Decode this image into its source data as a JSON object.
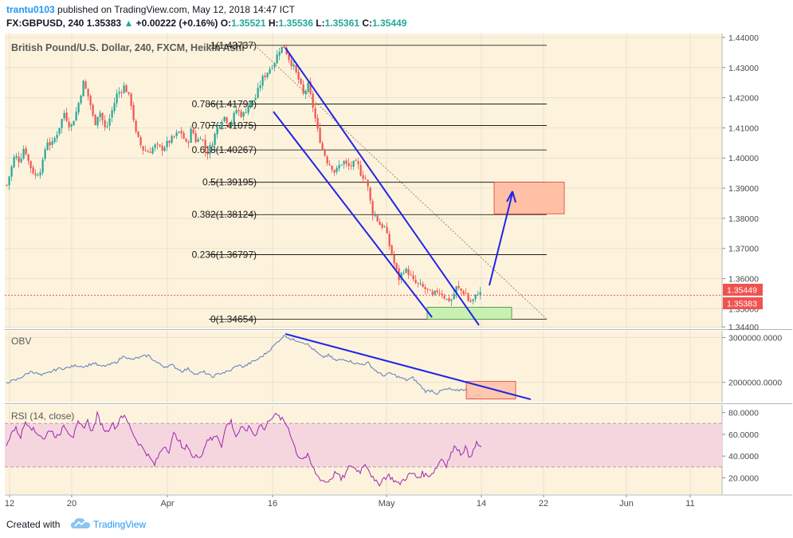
{
  "header": {
    "author": "trantu0103",
    "published_on": "published on TradingView.com, May 12, 2018 14:47 ICT",
    "symbol": "FX:GBPUSD, 240",
    "last": "1.35383",
    "change_arrow": "▲",
    "change": "+0.00222 (+0.16%)",
    "o_label": "O:",
    "o_val": "1.35521",
    "h_label": "H:",
    "h_val": "1.35536",
    "l_label": "L:",
    "l_val": "1.35361",
    "c_label": "C:",
    "c_val": "1.35449"
  },
  "footer": {
    "created_with": "Created with",
    "brand": "TradingView"
  },
  "chart_data": [
    {
      "type": "candlestick",
      "title": "British Pound/U.S. Dollar, 240, FXCM, Heikin Ashi",
      "price_range": [
        1.3435,
        1.4413
      ],
      "y_ticks": [
        "1.44000",
        "1.43000",
        "1.42000",
        "1.41000",
        "1.40000",
        "1.39000",
        "1.38000",
        "1.37000",
        "1.36000",
        "1.35000",
        "1.34400"
      ],
      "y_tick_values": [
        1.44,
        1.43,
        1.42,
        1.41,
        1.4,
        1.39,
        1.38,
        1.37,
        1.36,
        1.35,
        1.344
      ],
      "x_ticks": [
        "12",
        "20",
        "Apr",
        "16",
        "May",
        "14",
        "22",
        "Jun",
        "11"
      ],
      "price_labels": [
        {
          "text": "1.35449",
          "value": 1.35449,
          "color": "#ef5350"
        },
        {
          "text": "1.35383",
          "value": 1.35383,
          "color": "#ef5350"
        }
      ],
      "fibonacci": [
        {
          "label": "1(1.43737)",
          "value": 1.43737
        },
        {
          "label": "0.786(1.41793)",
          "value": 1.41793
        },
        {
          "label": "0.707(1.41075)",
          "value": 1.41075
        },
        {
          "label": "0.618(1.40267)",
          "value": 1.40267
        },
        {
          "label": "0.5(1.39195)",
          "value": 1.39195
        },
        {
          "label": "0.382(1.38124)",
          "value": 1.38124
        },
        {
          "label": "0.236(1.36797)",
          "value": 1.36797
        },
        {
          "label": "0(1.34654)",
          "value": 1.34654
        }
      ],
      "series_anchors": [
        [
          0,
          1.381
        ],
        [
          6,
          1.389
        ],
        [
          12,
          1.395
        ],
        [
          18,
          1.401
        ],
        [
          24,
          1.399
        ],
        [
          30,
          1.404
        ],
        [
          36,
          1.398
        ],
        [
          44,
          1.394
        ],
        [
          52,
          1.397
        ],
        [
          58,
          1.406
        ],
        [
          64,
          1.404
        ],
        [
          72,
          1.409
        ],
        [
          80,
          1.415
        ],
        [
          88,
          1.41
        ],
        [
          96,
          1.416
        ],
        [
          104,
          1.425
        ],
        [
          112,
          1.419
        ],
        [
          118,
          1.411
        ],
        [
          124,
          1.416
        ],
        [
          132,
          1.409
        ],
        [
          138,
          1.414
        ],
        [
          146,
          1.421
        ],
        [
          156,
          1.424
        ],
        [
          164,
          1.418
        ],
        [
          170,
          1.408
        ],
        [
          178,
          1.403
        ],
        [
          186,
          1.402
        ],
        [
          194,
          1.404
        ],
        [
          202,
          1.403
        ],
        [
          210,
          1.405
        ],
        [
          218,
          1.407
        ],
        [
          226,
          1.409
        ],
        [
          234,
          1.404
        ],
        [
          240,
          1.41
        ],
        [
          246,
          1.405
        ],
        [
          252,
          1.408
        ],
        [
          258,
          1.401
        ],
        [
          264,
          1.404
        ],
        [
          272,
          1.41
        ],
        [
          280,
          1.414
        ],
        [
          288,
          1.411
        ],
        [
          296,
          1.416
        ],
        [
          304,
          1.414
        ],
        [
          312,
          1.418
        ],
        [
          320,
          1.42
        ],
        [
          328,
          1.426
        ],
        [
          336,
          1.429
        ],
        [
          344,
          1.432
        ],
        [
          350,
          1.436
        ],
        [
          356,
          1.437
        ],
        [
          362,
          1.433
        ],
        [
          368,
          1.43
        ],
        [
          374,
          1.426
        ],
        [
          380,
          1.421
        ],
        [
          386,
          1.424
        ],
        [
          392,
          1.417
        ],
        [
          398,
          1.409
        ],
        [
          404,
          1.403
        ],
        [
          410,
          1.399
        ],
        [
          416,
          1.397
        ],
        [
          420,
          1.395
        ],
        [
          424,
          1.397
        ],
        [
          430,
          1.399
        ],
        [
          436,
          1.397
        ],
        [
          442,
          1.398
        ],
        [
          448,
          1.398
        ],
        [
          452,
          1.395
        ],
        [
          458,
          1.393
        ],
        [
          462,
          1.389
        ],
        [
          466,
          1.382
        ],
        [
          470,
          1.381
        ],
        [
          476,
          1.378
        ],
        [
          482,
          1.377
        ],
        [
          488,
          1.371
        ],
        [
          494,
          1.365
        ],
        [
          500,
          1.36
        ],
        [
          506,
          1.363
        ],
        [
          512,
          1.362
        ],
        [
          518,
          1.359
        ],
        [
          524,
          1.358
        ],
        [
          530,
          1.357
        ],
        [
          536,
          1.356
        ],
        [
          542,
          1.354
        ],
        [
          548,
          1.356
        ],
        [
          554,
          1.355
        ],
        [
          560,
          1.353
        ],
        [
          566,
          1.353
        ],
        [
          572,
          1.357
        ],
        [
          578,
          1.356
        ],
        [
          584,
          1.355
        ],
        [
          588,
          1.352
        ],
        [
          594,
          1.353
        ],
        [
          600,
          1.356
        ],
        [
          604,
          1.354
        ]
      ],
      "indicator": "OBV",
      "obv_range": [
        1550000,
        3150000
      ],
      "obv_ticks": [
        "3000000.0000",
        "2000000.0000"
      ],
      "obv_tick_values": [
        3000000,
        2000000
      ],
      "obv_anchors": [
        [
          8,
          2000000
        ],
        [
          20,
          2050000
        ],
        [
          30,
          2150000
        ],
        [
          40,
          2250000
        ],
        [
          52,
          2150000
        ],
        [
          62,
          2220000
        ],
        [
          72,
          2300000
        ],
        [
          84,
          2320000
        ],
        [
          96,
          2380000
        ],
        [
          106,
          2350000
        ],
        [
          118,
          2430000
        ],
        [
          126,
          2350000
        ],
        [
          136,
          2380000
        ],
        [
          146,
          2450000
        ],
        [
          156,
          2600000
        ],
        [
          164,
          2500000
        ],
        [
          174,
          2550000
        ],
        [
          186,
          2600000
        ],
        [
          196,
          2450000
        ],
        [
          206,
          2350000
        ],
        [
          216,
          2380000
        ],
        [
          228,
          2250000
        ],
        [
          236,
          2300000
        ],
        [
          246,
          2180000
        ],
        [
          256,
          2230000
        ],
        [
          266,
          2120000
        ],
        [
          276,
          2200000
        ],
        [
          288,
          2250000
        ],
        [
          298,
          2380000
        ],
        [
          306,
          2350000
        ],
        [
          316,
          2450000
        ],
        [
          324,
          2520000
        ],
        [
          334,
          2650000
        ],
        [
          344,
          2820000
        ],
        [
          352,
          2970000
        ],
        [
          358,
          3050000
        ],
        [
          366,
          2950000
        ],
        [
          374,
          2930000
        ],
        [
          384,
          2870000
        ],
        [
          394,
          2720000
        ],
        [
          404,
          2560000
        ],
        [
          412,
          2600000
        ],
        [
          422,
          2480000
        ],
        [
          432,
          2520000
        ],
        [
          442,
          2450000
        ],
        [
          452,
          2400000
        ],
        [
          462,
          2430000
        ],
        [
          470,
          2280000
        ],
        [
          480,
          2150000
        ],
        [
          490,
          2200000
        ],
        [
          500,
          2120000
        ],
        [
          510,
          2050000
        ],
        [
          518,
          2100000
        ],
        [
          526,
          1950000
        ],
        [
          534,
          1800000
        ],
        [
          542,
          1820000
        ],
        [
          548,
          1750000
        ],
        [
          556,
          1830000
        ],
        [
          564,
          1850000
        ],
        [
          572,
          1800000
        ],
        [
          580,
          1850000
        ],
        [
          586,
          1820000
        ],
        [
          590,
          1670000
        ],
        [
          594,
          1650000
        ],
        [
          598,
          1730000
        ],
        [
          604,
          1700000
        ]
      ],
      "rsi_label": "RSI (14, close)",
      "rsi_range": [
        5,
        87
      ],
      "rsi_ticks": [
        "80.0000",
        "60.0000",
        "40.0000",
        "20.0000"
      ],
      "rsi_tick_values": [
        80,
        60,
        40,
        20
      ],
      "rsi_band": [
        30,
        70
      ],
      "rsi_anchors": [
        [
          8,
          48
        ],
        [
          14,
          62
        ],
        [
          20,
          65
        ],
        [
          26,
          58
        ],
        [
          32,
          72
        ],
        [
          38,
          68
        ],
        [
          44,
          62
        ],
        [
          50,
          60
        ],
        [
          56,
          55
        ],
        [
          62,
          65
        ],
        [
          68,
          60
        ],
        [
          74,
          57
        ],
        [
          80,
          70
        ],
        [
          86,
          62
        ],
        [
          92,
          58
        ],
        [
          98,
          70
        ],
        [
          104,
          66
        ],
        [
          110,
          72
        ],
        [
          116,
          62
        ],
        [
          122,
          78
        ],
        [
          128,
          68
        ],
        [
          134,
          62
        ],
        [
          140,
          70
        ],
        [
          146,
          66
        ],
        [
          152,
          78
        ],
        [
          158,
          74
        ],
        [
          164,
          66
        ],
        [
          170,
          56
        ],
        [
          176,
          50
        ],
        [
          182,
          45
        ],
        [
          188,
          38
        ],
        [
          194,
          32
        ],
        [
          200,
          42
        ],
        [
          206,
          50
        ],
        [
          212,
          45
        ],
        [
          218,
          60
        ],
        [
          224,
          56
        ],
        [
          230,
          45
        ],
        [
          236,
          50
        ],
        [
          242,
          38
        ],
        [
          248,
          40
        ],
        [
          254,
          42
        ],
        [
          260,
          56
        ],
        [
          266,
          55
        ],
        [
          272,
          60
        ],
        [
          278,
          50
        ],
        [
          284,
          68
        ],
        [
          290,
          72
        ],
        [
          296,
          58
        ],
        [
          302,
          65
        ],
        [
          308,
          64
        ],
        [
          314,
          66
        ],
        [
          320,
          58
        ],
        [
          326,
          70
        ],
        [
          332,
          64
        ],
        [
          338,
          74
        ],
        [
          344,
          78
        ],
        [
          350,
          76
        ],
        [
          356,
          72
        ],
        [
          362,
          66
        ],
        [
          368,
          52
        ],
        [
          374,
          40
        ],
        [
          380,
          38
        ],
        [
          386,
          40
        ],
        [
          392,
          30
        ],
        [
          398,
          22
        ],
        [
          404,
          18
        ],
        [
          410,
          16
        ],
        [
          416,
          20
        ],
        [
          422,
          26
        ],
        [
          428,
          18
        ],
        [
          434,
          24
        ],
        [
          440,
          32
        ],
        [
          446,
          28
        ],
        [
          452,
          26
        ],
        [
          458,
          34
        ],
        [
          464,
          26
        ],
        [
          470,
          16
        ],
        [
          476,
          15
        ],
        [
          482,
          20
        ],
        [
          488,
          22
        ],
        [
          494,
          18
        ],
        [
          500,
          14
        ],
        [
          506,
          18
        ],
        [
          512,
          22
        ],
        [
          518,
          24
        ],
        [
          524,
          20
        ],
        [
          530,
          24
        ],
        [
          536,
          22
        ],
        [
          542,
          24
        ],
        [
          548,
          30
        ],
        [
          554,
          38
        ],
        [
          560,
          32
        ],
        [
          566,
          42
        ],
        [
          572,
          50
        ],
        [
          578,
          42
        ],
        [
          584,
          48
        ],
        [
          588,
          40
        ],
        [
          594,
          44
        ],
        [
          598,
          52
        ],
        [
          604,
          48
        ]
      ]
    }
  ],
  "colors": {
    "panel_bg": "#fdf3dc",
    "grid": "#e9e2d0",
    "up": "#26a69a",
    "down": "#ef5350",
    "trend": "#1f24e8",
    "fib": "#000000",
    "obv": "#5c7bbd",
    "rsi": "#9c27b0",
    "rsi_band": "#f5d6de",
    "target_fill": "#ffc0a6",
    "target_stroke": "#e53935",
    "support_fill": "#c8f0b0",
    "support_stroke": "#3a8a3a",
    "axis_text": "#4a4a4a"
  }
}
